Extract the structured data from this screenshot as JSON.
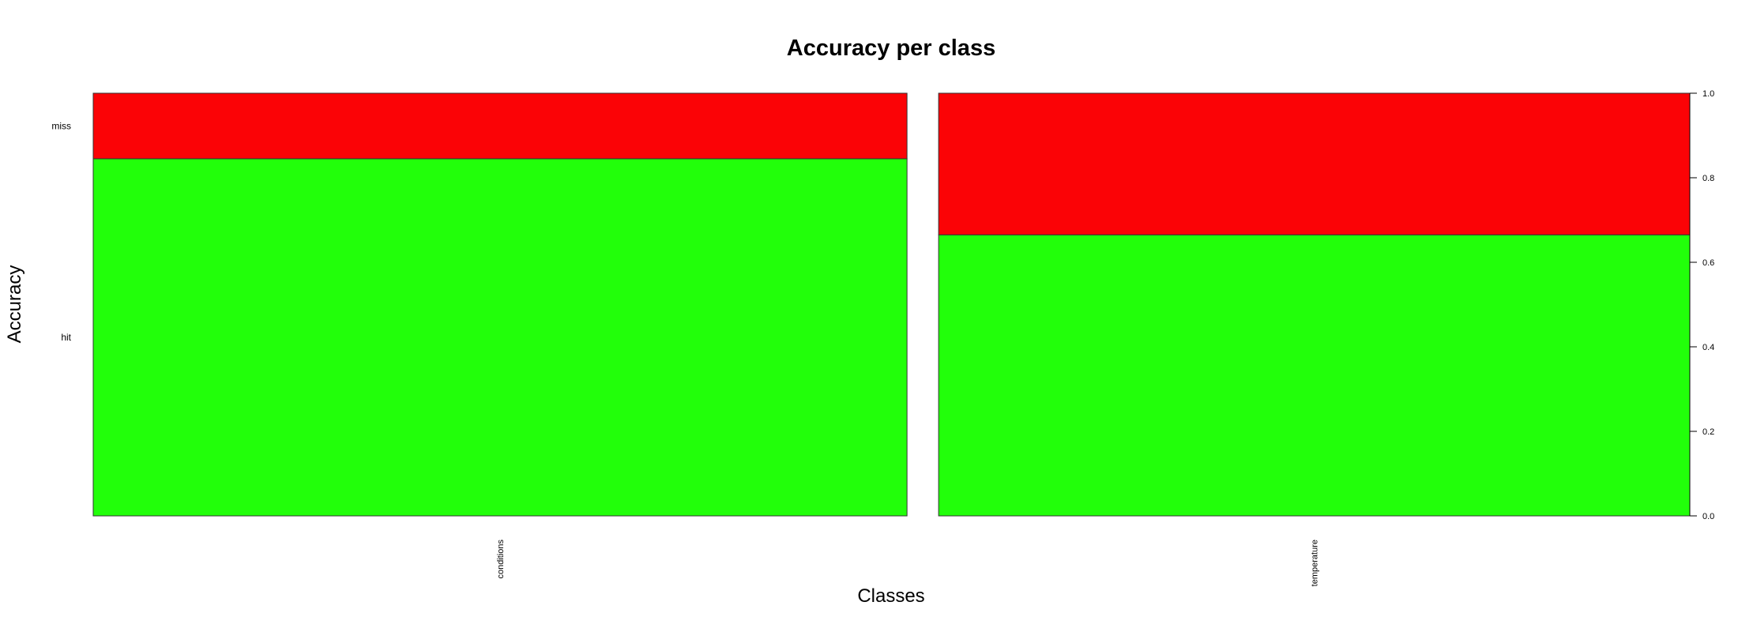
{
  "chart_data": {
    "type": "bar",
    "subtype": "spineplot",
    "title": "Accuracy per class",
    "xlabel": "Classes",
    "ylabel": "Accuracy",
    "categories": [
      "conditions",
      "temperature"
    ],
    "category_widths": [
      0.52,
      0.48
    ],
    "series": [
      {
        "name": "hit",
        "color": "#22ff0a",
        "values": [
          0.845,
          0.665
        ]
      },
      {
        "name": "miss",
        "color": "#fb0306",
        "values": [
          0.155,
          0.335
        ]
      }
    ],
    "ylim": [
      0,
      1
    ],
    "yticks": [
      "0.0",
      "0.2",
      "0.4",
      "0.6",
      "0.8",
      "1.0"
    ],
    "grid": false,
    "legend": "none"
  }
}
